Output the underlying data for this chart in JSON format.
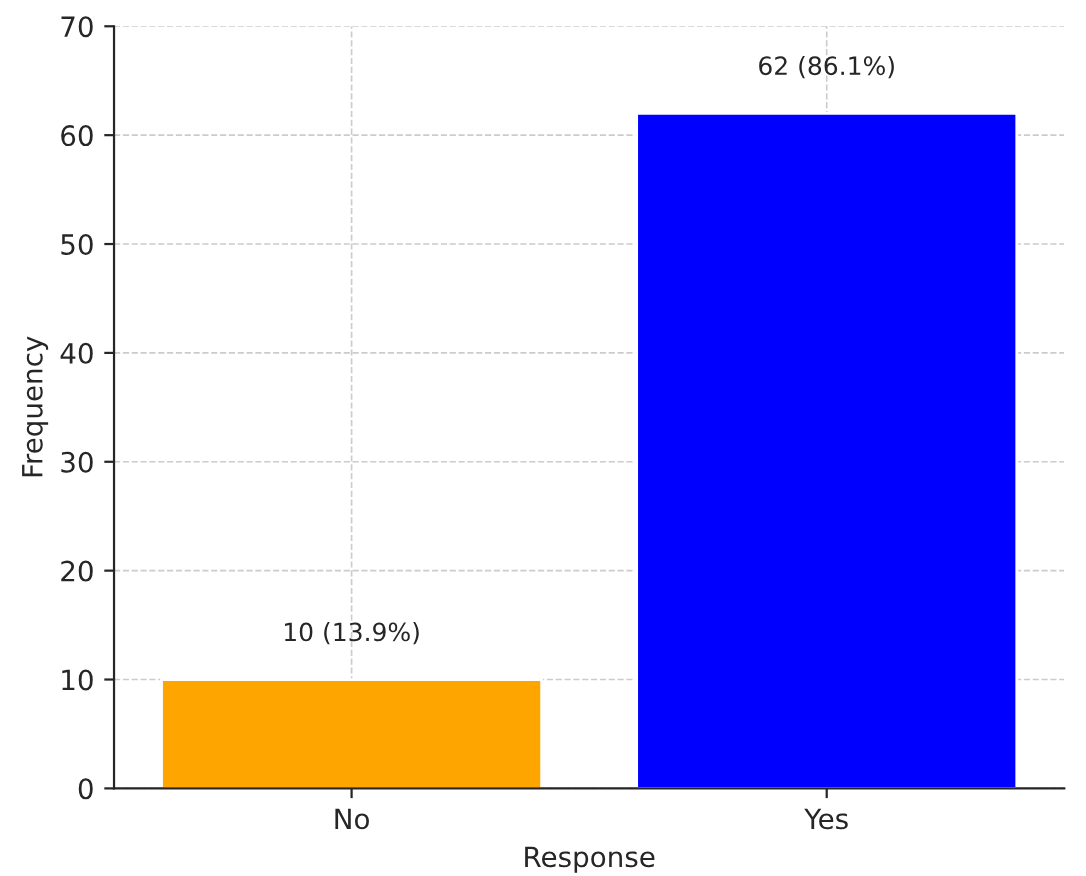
{
  "chart_data": {
    "type": "bar",
    "categories": [
      "No",
      "Yes"
    ],
    "values": [
      10,
      62
    ],
    "colors": [
      "#ffa500",
      "#0000ff"
    ],
    "value_labels": [
      "10 (13.9%)",
      "62 (86.1%)"
    ],
    "xlabel": "Response",
    "ylabel": "Frequency",
    "ylim": [
      0,
      70
    ],
    "yticks": [
      0,
      10,
      20,
      30,
      40,
      50,
      60,
      70
    ],
    "grid": true
  }
}
